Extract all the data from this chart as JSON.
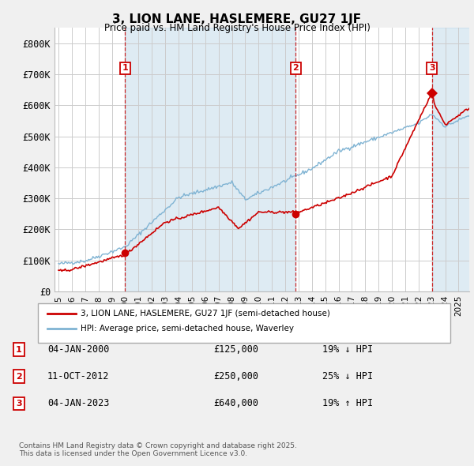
{
  "title": "3, LION LANE, HASLEMERE, GU27 1JF",
  "subtitle": "Price paid vs. HM Land Registry's House Price Index (HPI)",
  "legend_line1": "3, LION LANE, HASLEMERE, GU27 1JF (semi-detached house)",
  "legend_line2": "HPI: Average price, semi-detached house, Waverley",
  "footer": "Contains HM Land Registry data © Crown copyright and database right 2025.\nThis data is licensed under the Open Government Licence v3.0.",
  "sale_color": "#cc0000",
  "hpi_color": "#7fb3d3",
  "vline_color": "#cc0000",
  "shade_color": "#ddeeff",
  "transactions": [
    {
      "num": 1,
      "date": "04-JAN-2000",
      "price": 125000,
      "pct": "19% ↓ HPI",
      "year": 2000.0
    },
    {
      "num": 2,
      "date": "11-OCT-2012",
      "price": 250000,
      "pct": "25% ↓ HPI",
      "year": 2012.79
    },
    {
      "num": 3,
      "date": "04-JAN-2023",
      "price": 640000,
      "pct": "19% ↑ HPI",
      "year": 2023.0
    }
  ],
  "ylim": [
    0,
    850000
  ],
  "xlim_start": 1994.7,
  "xlim_end": 2025.8,
  "yticks": [
    0,
    100000,
    200000,
    300000,
    400000,
    500000,
    600000,
    700000,
    800000
  ],
  "ytick_labels": [
    "£0",
    "£100K",
    "£200K",
    "£300K",
    "£400K",
    "£500K",
    "£600K",
    "£700K",
    "£800K"
  ],
  "background_color": "#f0f0f0",
  "plot_bg_color": "#ffffff",
  "grid_color": "#cccccc"
}
